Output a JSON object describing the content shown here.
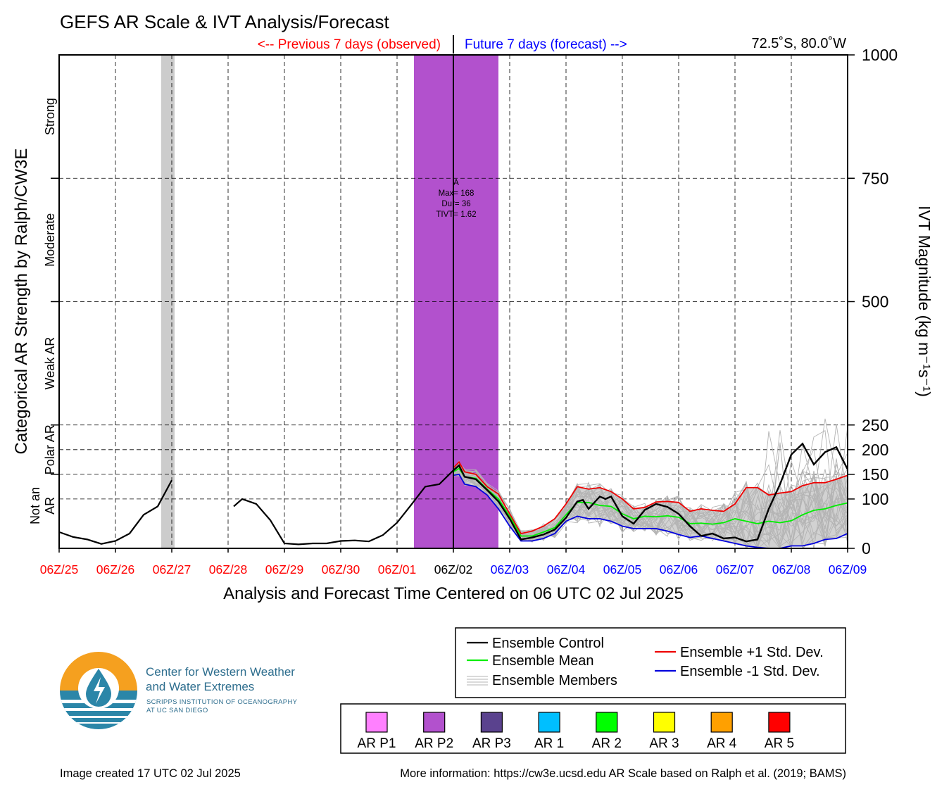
{
  "title": "GEFS AR Scale & IVT Analysis/Forecast",
  "prev_label": "<-- Previous 7 days (observed)",
  "future_label": "Future 7 days (forecast) -->",
  "location": "72.5˚S, 80.0˚W",
  "colors": {
    "observed": "#ff0000",
    "forecast": "#0000ff",
    "control": "#000000",
    "mean": "#00ee00",
    "plus_std": "#ee0000",
    "minus_std": "#0000dd",
    "members": "#b4b4b4",
    "spread": "#d2d2d2",
    "ar_p2": "#b251cd"
  },
  "chart_data": {
    "type": "line",
    "xlabel": "Analysis and Forecast Time Centered on 06 UTC 02 Jul 2025",
    "ylabel_left": "Categorical AR Strength by Ralph/CW3E",
    "ylabel_right": "IVT Magnitude (kg m⁻¹s⁻¹)",
    "x_unit": "days relative to 06Z/25",
    "xlim": [
      0,
      14
    ],
    "ylim": [
      0,
      1000
    ],
    "x_ticks": [
      {
        "label": "06Z/25",
        "kind": "observed"
      },
      {
        "label": "06Z/26",
        "kind": "observed"
      },
      {
        "label": "06Z/27",
        "kind": "observed"
      },
      {
        "label": "06Z/28",
        "kind": "observed"
      },
      {
        "label": "06Z/29",
        "kind": "observed"
      },
      {
        "label": "06Z/30",
        "kind": "observed"
      },
      {
        "label": "06Z/01",
        "kind": "observed"
      },
      {
        "label": "06Z/02",
        "kind": "current"
      },
      {
        "label": "06Z/03",
        "kind": "forecast"
      },
      {
        "label": "06Z/04",
        "kind": "forecast"
      },
      {
        "label": "06Z/05",
        "kind": "forecast"
      },
      {
        "label": "06Z/06",
        "kind": "forecast"
      },
      {
        "label": "06Z/07",
        "kind": "forecast"
      },
      {
        "label": "06Z/08",
        "kind": "forecast"
      },
      {
        "label": "06Z/09",
        "kind": "forecast"
      }
    ],
    "y_ticks": [
      0,
      100,
      150,
      200,
      250,
      500,
      750,
      1000
    ],
    "categories": [
      {
        "label": "Strong",
        "range": [
          750,
          1000
        ]
      },
      {
        "label": "Moderate",
        "range": [
          500,
          750
        ]
      },
      {
        "label": "Weak AR",
        "range": [
          250,
          500
        ]
      },
      {
        "label": "Polar AR",
        "range": [
          150,
          250
        ]
      },
      {
        "label": "Not an AR",
        "range": [
          0,
          150
        ]
      }
    ],
    "ar_events": [
      {
        "category": "AR P2",
        "start": 6.3,
        "end": 7.8,
        "annotation": [
          "A",
          "Max= 168",
          "Dur= 36",
          "TIVT= 1.62"
        ]
      }
    ],
    "gray_periods": [
      {
        "start": 1.81,
        "end": 2.05
      }
    ],
    "observed_control": [
      [
        [
          0.0,
          33
        ],
        [
          0.25,
          23
        ],
        [
          0.5,
          18
        ],
        [
          0.75,
          9
        ],
        [
          1.0,
          15
        ],
        [
          1.25,
          30
        ],
        [
          1.5,
          68
        ],
        [
          1.75,
          85
        ],
        [
          2.0,
          138
        ]
      ],
      [
        [
          3.1,
          85
        ],
        [
          3.25,
          100
        ],
        [
          3.5,
          90
        ],
        [
          3.75,
          57
        ],
        [
          4.0,
          10
        ],
        [
          4.25,
          8
        ],
        [
          4.5,
          10
        ],
        [
          4.75,
          10
        ],
        [
          5.0,
          15
        ],
        [
          5.25,
          16
        ],
        [
          5.5,
          14
        ],
        [
          5.75,
          27
        ],
        [
          6.0,
          52
        ],
        [
          6.25,
          88
        ],
        [
          6.5,
          125
        ],
        [
          6.75,
          130
        ],
        [
          7.0,
          158
        ],
        [
          7.1,
          168
        ]
      ]
    ],
    "series": [
      {
        "name": "Ensemble Control",
        "key": "control",
        "x": [
          7.0,
          7.1,
          7.2,
          7.4,
          7.6,
          7.8,
          8.0,
          8.2,
          8.4,
          8.6,
          8.8,
          9.0,
          9.2,
          9.3,
          9.4,
          9.6,
          9.7,
          9.8,
          10.0,
          10.2,
          10.4,
          10.6,
          10.8,
          11.0,
          11.2,
          11.4,
          11.6,
          11.8,
          12.0,
          12.2,
          12.4,
          12.6,
          12.8,
          13.0,
          13.2,
          13.4,
          13.6,
          13.8,
          14.0
        ],
        "y": [
          158,
          168,
          145,
          140,
          118,
          95,
          60,
          18,
          22,
          28,
          38,
          62,
          95,
          98,
          80,
          105,
          100,
          105,
          65,
          50,
          78,
          90,
          84,
          70,
          45,
          25,
          30,
          20,
          22,
          14,
          18,
          80,
          130,
          190,
          212,
          170,
          195,
          205,
          160
        ]
      },
      {
        "name": "Ensemble Mean",
        "key": "mean",
        "x": [
          7.0,
          7.1,
          7.2,
          7.4,
          7.6,
          7.8,
          8.0,
          8.2,
          8.4,
          8.6,
          8.8,
          9.0,
          9.2,
          9.4,
          9.6,
          9.8,
          10.0,
          10.2,
          10.4,
          10.6,
          10.8,
          11.0,
          11.2,
          11.4,
          11.6,
          11.8,
          12.0,
          12.2,
          12.4,
          12.6,
          12.8,
          13.0,
          13.2,
          13.4,
          13.6,
          13.8,
          14.0
        ],
        "y": [
          155,
          162,
          145,
          142,
          120,
          100,
          65,
          25,
          25,
          33,
          42,
          68,
          93,
          93,
          87,
          85,
          70,
          60,
          65,
          64,
          66,
          63,
          50,
          51,
          49,
          52,
          60,
          55,
          50,
          55,
          52,
          56,
          68,
          77,
          80,
          87,
          92
        ]
      },
      {
        "name": "Ensemble +1 Std. Dev.",
        "key": "plus_std",
        "x": [
          7.0,
          7.1,
          7.2,
          7.4,
          7.6,
          7.8,
          8.0,
          8.2,
          8.4,
          8.6,
          8.8,
          9.0,
          9.2,
          9.4,
          9.6,
          9.8,
          10.0,
          10.2,
          10.4,
          10.6,
          10.8,
          11.0,
          11.2,
          11.4,
          11.6,
          11.8,
          12.0,
          12.2,
          12.4,
          12.6,
          12.8,
          13.0,
          13.2,
          13.4,
          13.6,
          13.8,
          14.0
        ],
        "y": [
          163,
          175,
          155,
          150,
          125,
          110,
          70,
          30,
          35,
          45,
          60,
          90,
          125,
          120,
          123,
          115,
          100,
          80,
          83,
          94,
          95,
          93,
          75,
          80,
          77,
          75,
          90,
          123,
          123,
          108,
          112,
          115,
          127,
          133,
          133,
          140,
          148
        ]
      },
      {
        "name": "Ensemble -1 Std. Dev.",
        "key": "minus_std",
        "x": [
          7.0,
          7.1,
          7.2,
          7.4,
          7.6,
          7.8,
          8.0,
          8.2,
          8.4,
          8.6,
          8.8,
          9.0,
          9.2,
          9.4,
          9.6,
          9.8,
          10.0,
          10.2,
          10.4,
          10.6,
          10.8,
          11.0,
          11.2,
          11.4,
          11.6,
          11.8,
          12.0,
          12.2,
          12.4,
          12.6,
          12.8,
          13.0,
          13.2,
          13.4,
          13.6,
          13.8,
          14.0
        ],
        "y": [
          148,
          150,
          130,
          125,
          108,
          80,
          45,
          15,
          15,
          20,
          30,
          55,
          65,
          60,
          60,
          55,
          45,
          40,
          40,
          40,
          35,
          28,
          22,
          25,
          20,
          15,
          10,
          5,
          2,
          0,
          0,
          5,
          5,
          10,
          18,
          20,
          30
        ]
      }
    ],
    "members_label": "Ensemble Members",
    "members_spread": {
      "range_x": [
        7.0,
        14.0
      ],
      "ymax_peak": 305
    }
  },
  "ar_scale_legend": [
    {
      "label": "AR P1",
      "color": "#ff80ff"
    },
    {
      "label": "AR P2",
      "color": "#b251cd"
    },
    {
      "label": "AR P3",
      "color": "#5a428e"
    },
    {
      "label": "AR 1",
      "color": "#00bfff"
    },
    {
      "label": "AR 2",
      "color": "#00ff00"
    },
    {
      "label": "AR 3",
      "color": "#ffff00"
    },
    {
      "label": "AR 4",
      "color": "#ffa000"
    },
    {
      "label": "AR 5",
      "color": "#ff0000"
    }
  ],
  "logo": {
    "line1": "Center for Western Weather",
    "line2": "and Water Extremes",
    "line3": "SCRIPPS INSTITUTION OF OCEANOGRAPHY",
    "line4": "AT UC SAN DIEGO"
  },
  "footer": {
    "created": "Image created 17 UTC 02 Jul 2025",
    "info": "More information: https://cw3e.ucsd.edu AR Scale based on Ralph et al. (2019; BAMS)"
  }
}
